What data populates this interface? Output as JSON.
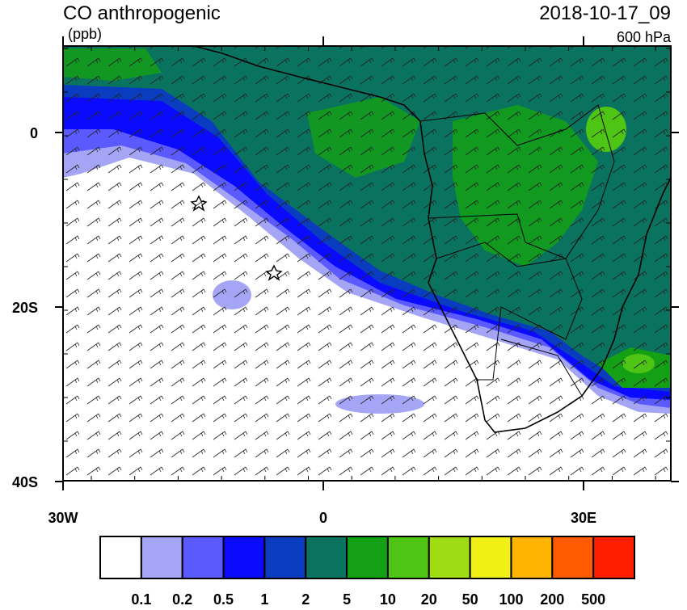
{
  "header": {
    "title": "CO anthropogenic",
    "units": "(ppb)",
    "time": "2018-10-17_09",
    "level": "600 hPa"
  },
  "map": {
    "lat_ticks": [
      {
        "value": 0,
        "label": "0"
      },
      {
        "value": -20,
        "label": "20S"
      },
      {
        "value": -40,
        "label": "40S"
      }
    ],
    "lon_ticks": [
      {
        "value": -30,
        "label": "30W"
      },
      {
        "value": 0,
        "label": "0"
      },
      {
        "value": 30,
        "label": "30E"
      }
    ]
  },
  "colorbar": {
    "labels": [
      "0.1",
      "0.2",
      "0.5",
      "1",
      "2",
      "5",
      "10",
      "20",
      "50",
      "100",
      "200",
      "500"
    ],
    "colors": [
      "#ffffff",
      "#a5a5f5",
      "#5a5aff",
      "#0a0aff",
      "#0a3cc0",
      "#0a735f",
      "#14a014",
      "#4ec414",
      "#a0dc14",
      "#f0f014",
      "#ffb400",
      "#ff5a00",
      "#ff1e00"
    ]
  }
}
